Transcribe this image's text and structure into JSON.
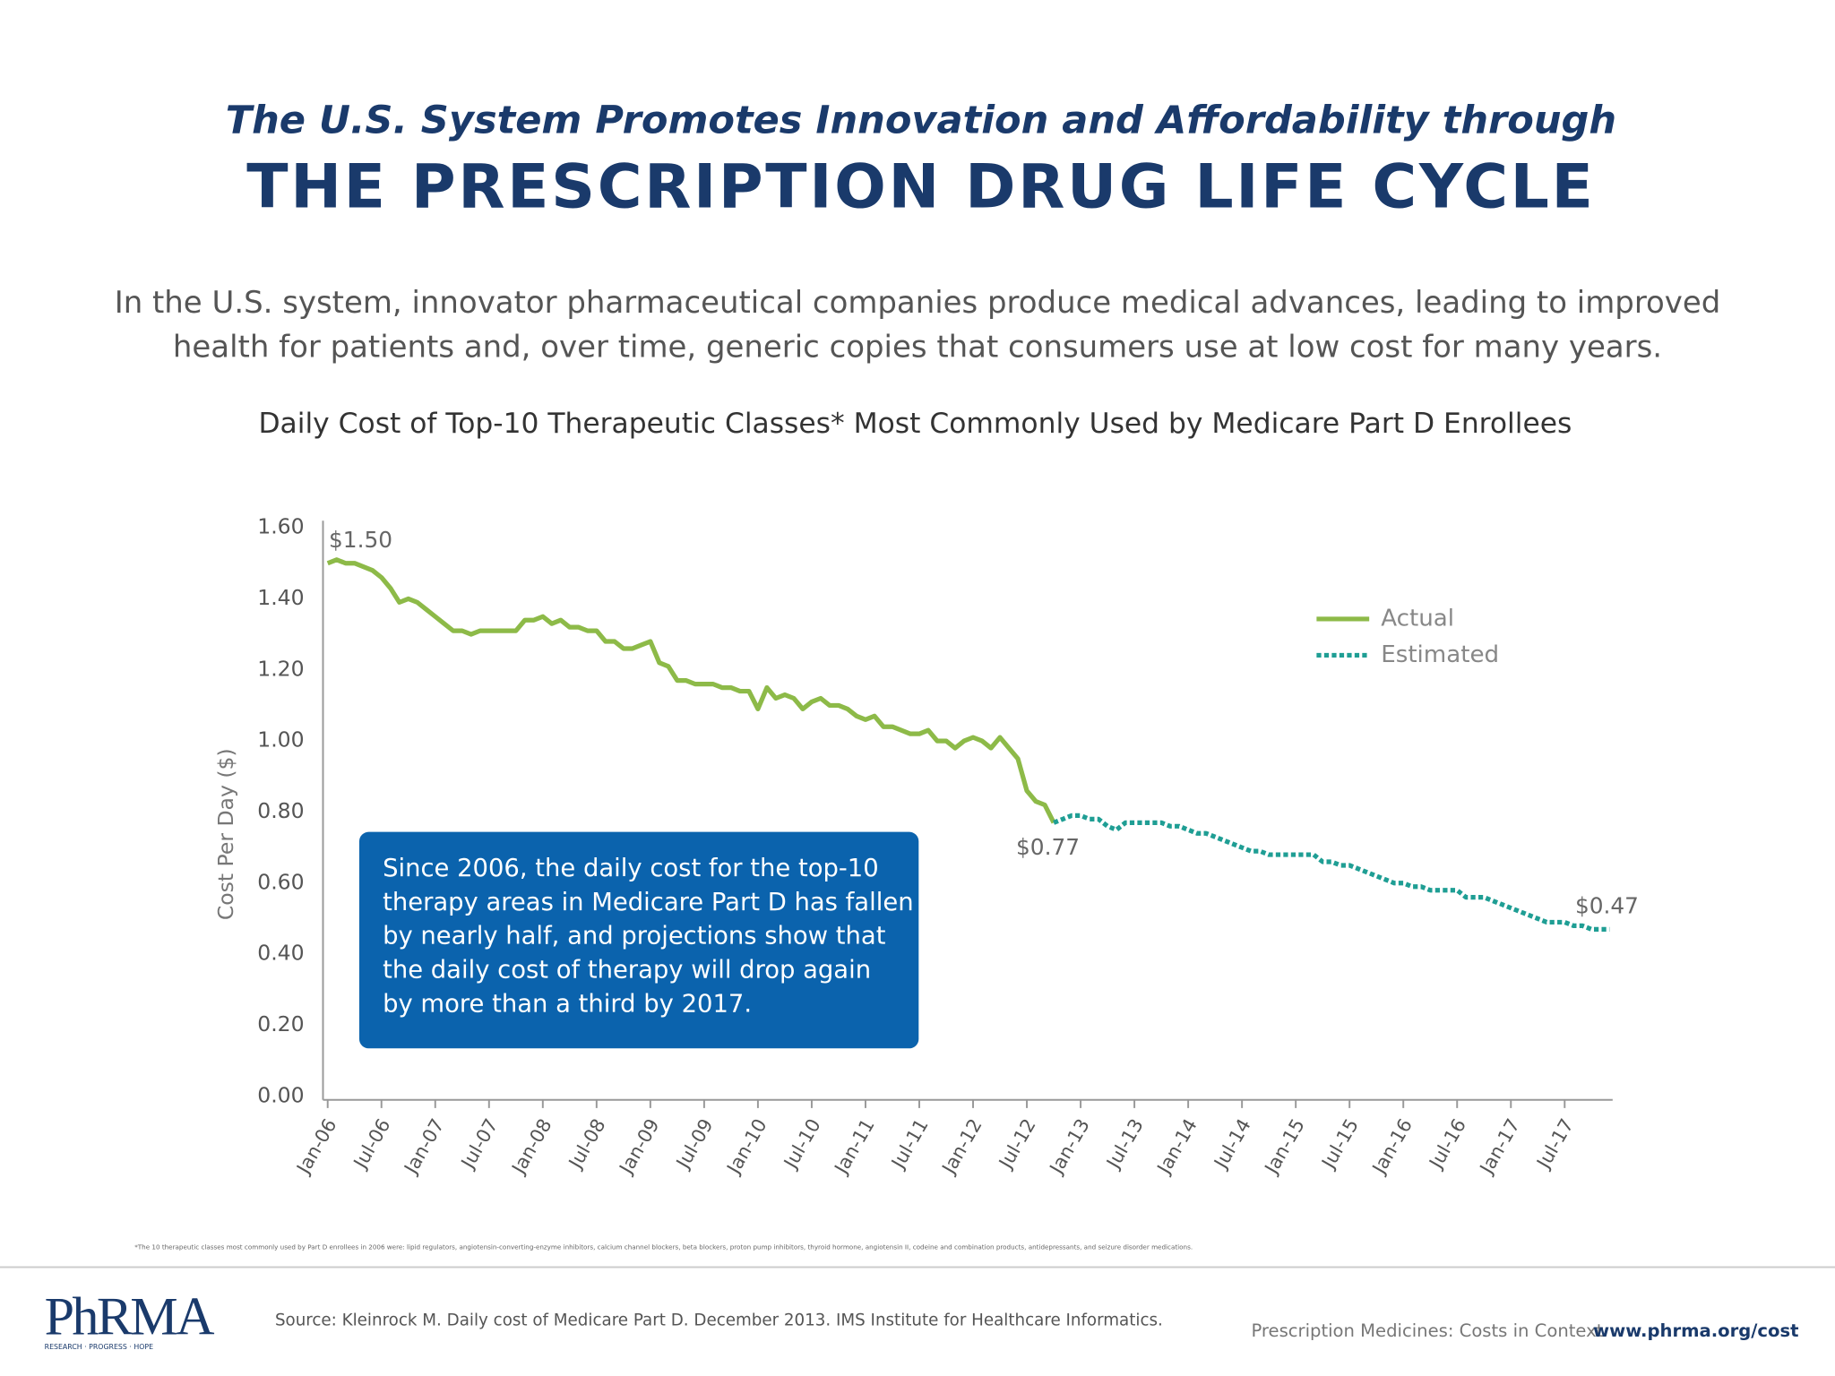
{
  "header": {
    "title_line1": "The U.S. System Promotes Innovation and Affordability through",
    "title_line2": "THE PRESCRIPTION DRUG LIFE CYCLE",
    "intro": [
      "In the U.S. system, innovator pharmaceutical companies produce medical advances, leading to improved",
      "health for patients and, over time, generic copies that consumers use at low cost for many years."
    ]
  },
  "chart_data": {
    "type": "line",
    "title": "Daily Cost of Top-10 Therapeutic Classes* Most Commonly Used by Medicare Part D Enrollees",
    "y_label": "Cost Per Day ($)",
    "categories": [
      "Jan-06",
      null,
      null,
      null,
      null,
      null,
      "Jul-06",
      null,
      null,
      null,
      null,
      null,
      "Jan-07",
      null,
      null,
      null,
      null,
      null,
      "Jul-07",
      null,
      null,
      null,
      null,
      null,
      "Jan-08",
      null,
      null,
      null,
      null,
      null,
      "Jul-08",
      null,
      null,
      null,
      null,
      null,
      "Jan-09",
      null,
      null,
      null,
      null,
      null,
      "Jul-09",
      null,
      null,
      null,
      null,
      null,
      "Jan-10",
      null,
      null,
      null,
      null,
      null,
      "Jul-10",
      null,
      null,
      null,
      null,
      null,
      "Jan-11",
      null,
      null,
      null,
      null,
      null,
      "Jul-11",
      null,
      null,
      null,
      null,
      null,
      "Jan-12",
      null,
      null,
      null,
      null,
      null,
      "Jul-12",
      null,
      null,
      null,
      null,
      null,
      "Jan-13",
      null,
      null,
      null,
      null,
      null,
      "Jul-13",
      null,
      null,
      null,
      null,
      null,
      "Jan-14",
      null,
      null,
      null,
      null,
      null,
      "Jul-14",
      null,
      null,
      null,
      null,
      null,
      "Jan-15",
      null,
      null,
      null,
      null,
      null,
      "Jul-15",
      null,
      null,
      null,
      null,
      null,
      "Jan-16",
      null,
      null,
      null,
      null,
      null,
      "Jul-16",
      null,
      null,
      null,
      null,
      null,
      "Jan-17",
      null,
      null,
      null,
      null,
      null,
      "Jul-17",
      null,
      null,
      null,
      null,
      null
    ],
    "series": [
      {
        "name": "Actual",
        "color": "#8dba48",
        "dashed": false,
        "values": [
          1.5,
          1.51,
          1.5,
          1.5,
          1.49,
          1.48,
          1.46,
          1.43,
          1.39,
          1.4,
          1.39,
          1.37,
          1.35,
          1.33,
          1.31,
          1.31,
          1.3,
          1.31,
          1.31,
          1.31,
          1.31,
          1.31,
          1.34,
          1.34,
          1.35,
          1.33,
          1.34,
          1.32,
          1.32,
          1.31,
          1.31,
          1.28,
          1.28,
          1.26,
          1.26,
          1.27,
          1.28,
          1.22,
          1.21,
          1.17,
          1.17,
          1.16,
          1.16,
          1.16,
          1.15,
          1.15,
          1.14,
          1.14,
          1.09,
          1.15,
          1.12,
          1.13,
          1.12,
          1.09,
          1.11,
          1.12,
          1.1,
          1.1,
          1.09,
          1.07,
          1.06,
          1.07,
          1.04,
          1.04,
          1.03,
          1.02,
          1.02,
          1.03,
          1.0,
          1.0,
          0.98,
          1.0,
          1.01,
          1.0,
          0.98,
          1.01,
          0.98,
          0.95,
          0.86,
          0.83,
          0.82,
          0.77,
          null,
          null,
          null,
          null,
          null,
          null,
          null,
          null,
          null,
          null,
          null,
          null,
          null,
          null,
          null,
          null,
          null,
          null,
          null,
          null,
          null,
          null,
          null,
          null,
          null,
          null,
          null,
          null,
          null,
          null,
          null,
          null,
          null,
          null,
          null,
          null,
          null,
          null,
          null,
          null,
          null,
          null,
          null,
          null,
          null,
          null,
          null,
          null,
          null,
          null,
          null,
          null,
          null,
          null,
          null,
          null,
          null,
          null,
          null,
          null,
          null,
          null
        ],
        "value_labels": [
          "$1.50",
          null,
          null,
          null,
          null,
          null,
          null,
          null,
          null,
          null,
          null,
          null,
          null,
          null,
          null,
          null,
          null,
          null,
          null,
          null,
          null,
          null,
          null,
          null,
          null,
          null,
          null,
          null,
          null,
          null,
          null,
          null,
          null,
          null,
          null,
          null,
          null,
          null,
          null,
          null,
          null,
          null,
          null,
          null,
          null,
          null,
          null,
          null,
          null,
          null,
          null,
          null,
          null,
          null,
          null,
          null,
          null,
          null,
          null,
          null,
          null,
          null,
          null,
          null,
          null,
          null,
          null,
          null,
          null,
          null,
          null,
          null,
          null,
          null,
          null,
          null,
          null,
          null,
          null,
          null,
          null,
          "$0.77",
          null,
          null,
          null,
          null,
          null,
          null,
          null,
          null,
          null,
          null,
          null,
          null,
          null,
          null,
          null,
          null,
          null,
          null,
          null,
          null,
          null,
          null,
          null,
          null,
          null,
          null,
          null,
          null,
          null,
          null,
          null,
          null,
          null,
          null,
          null,
          null,
          null,
          null,
          null,
          null,
          null,
          null,
          null,
          null,
          null,
          null,
          null,
          null,
          null,
          null,
          null,
          null,
          null,
          null,
          null,
          null,
          null,
          null,
          null,
          null,
          null,
          null
        ]
      },
      {
        "name": "Estimated",
        "color": "#1f9e94",
        "dashed": true,
        "values": [
          null,
          null,
          null,
          null,
          null,
          null,
          null,
          null,
          null,
          null,
          null,
          null,
          null,
          null,
          null,
          null,
          null,
          null,
          null,
          null,
          null,
          null,
          null,
          null,
          null,
          null,
          null,
          null,
          null,
          null,
          null,
          null,
          null,
          null,
          null,
          null,
          null,
          null,
          null,
          null,
          null,
          null,
          null,
          null,
          null,
          null,
          null,
          null,
          null,
          null,
          null,
          null,
          null,
          null,
          null,
          null,
          null,
          null,
          null,
          null,
          null,
          null,
          null,
          null,
          null,
          null,
          null,
          null,
          null,
          null,
          null,
          null,
          null,
          null,
          null,
          null,
          null,
          null,
          null,
          null,
          null,
          0.77,
          0.78,
          0.79,
          0.79,
          0.78,
          0.78,
          0.76,
          0.75,
          0.77,
          0.77,
          0.77,
          0.77,
          0.77,
          0.76,
          0.76,
          0.75,
          0.74,
          0.74,
          0.73,
          0.72,
          0.71,
          0.7,
          0.69,
          0.69,
          0.68,
          0.68,
          0.68,
          0.68,
          0.68,
          0.68,
          0.66,
          0.66,
          0.65,
          0.65,
          0.64,
          0.63,
          0.62,
          0.61,
          0.6,
          0.6,
          0.59,
          0.59,
          0.58,
          0.58,
          0.58,
          0.58,
          0.56,
          0.56,
          0.56,
          0.55,
          0.54,
          0.53,
          0.52,
          0.51,
          0.5,
          0.49,
          0.49,
          0.49,
          0.48,
          0.48,
          0.47,
          0.47,
          0.47
        ],
        "value_labels": [
          null,
          null,
          null,
          null,
          null,
          null,
          null,
          null,
          null,
          null,
          null,
          null,
          null,
          null,
          null,
          null,
          null,
          null,
          null,
          null,
          null,
          null,
          null,
          null,
          null,
          null,
          null,
          null,
          null,
          null,
          null,
          null,
          null,
          null,
          null,
          null,
          null,
          null,
          null,
          null,
          null,
          null,
          null,
          null,
          null,
          null,
          null,
          null,
          null,
          null,
          null,
          null,
          null,
          null,
          null,
          null,
          null,
          null,
          null,
          null,
          null,
          null,
          null,
          null,
          null,
          null,
          null,
          null,
          null,
          null,
          null,
          null,
          null,
          null,
          null,
          null,
          null,
          null,
          null,
          null,
          null,
          null,
          null,
          null,
          null,
          null,
          null,
          null,
          null,
          null,
          null,
          null,
          null,
          null,
          null,
          null,
          null,
          null,
          null,
          null,
          null,
          null,
          null,
          null,
          null,
          null,
          null,
          null,
          null,
          null,
          null,
          null,
          null,
          null,
          null,
          null,
          null,
          null,
          null,
          null,
          null,
          null,
          null,
          null,
          null,
          null,
          null,
          null,
          null,
          null,
          null,
          null,
          null,
          null,
          null,
          null,
          null,
          null,
          null,
          null,
          null,
          null,
          null,
          "$0.47"
        ]
      }
    ],
    "ylim": [
      0,
      1.6
    ],
    "yticks": [
      {
        "value": 0,
        "label": "0.00"
      },
      {
        "value": 0.2,
        "label": "0.20"
      },
      {
        "value": 0.4,
        "label": "0.40"
      },
      {
        "value": 0.6,
        "label": "0.60"
      },
      {
        "value": 0.8,
        "label": "0.80"
      },
      {
        "value": 1,
        "label": "1.00"
      },
      {
        "value": 1.2,
        "label": "1.20"
      },
      {
        "value": 1.4,
        "label": "1.40"
      },
      {
        "value": 1.6,
        "label": "1.60"
      }
    ],
    "grid": false,
    "legend": "upper right",
    "callout": [
      "Since 2006, the daily cost for the top-10",
      "therapy areas in Medicare Part D has fallen",
      "by nearly half, and projections show that",
      "the daily cost of therapy will drop again",
      "by more than a third by 2017."
    ],
    "footnote": "*The 10 therapeutic classes most commonly used by Part D enrollees in 2006 were: lipid regulators, angiotensin-converting-enzyme inhibitors, calcium channel blockers, beta blockers, proton pump inhibitors, thyroid hormone, angiotensin II, codeine and combination products, antidepressants, and seizure disorder medications."
  },
  "footer": {
    "logo": "PhRMA",
    "logo_tagline": "RESEARCH · PROGRESS · HOPE",
    "source": "Source: Kleinrock M. Daily cost of Medicare Part D. December 2013. IMS Institute for Healthcare Informatics.",
    "tagline": "Prescription Medicines: Costs in Context",
    "url": "www.phrma.org/cost"
  }
}
